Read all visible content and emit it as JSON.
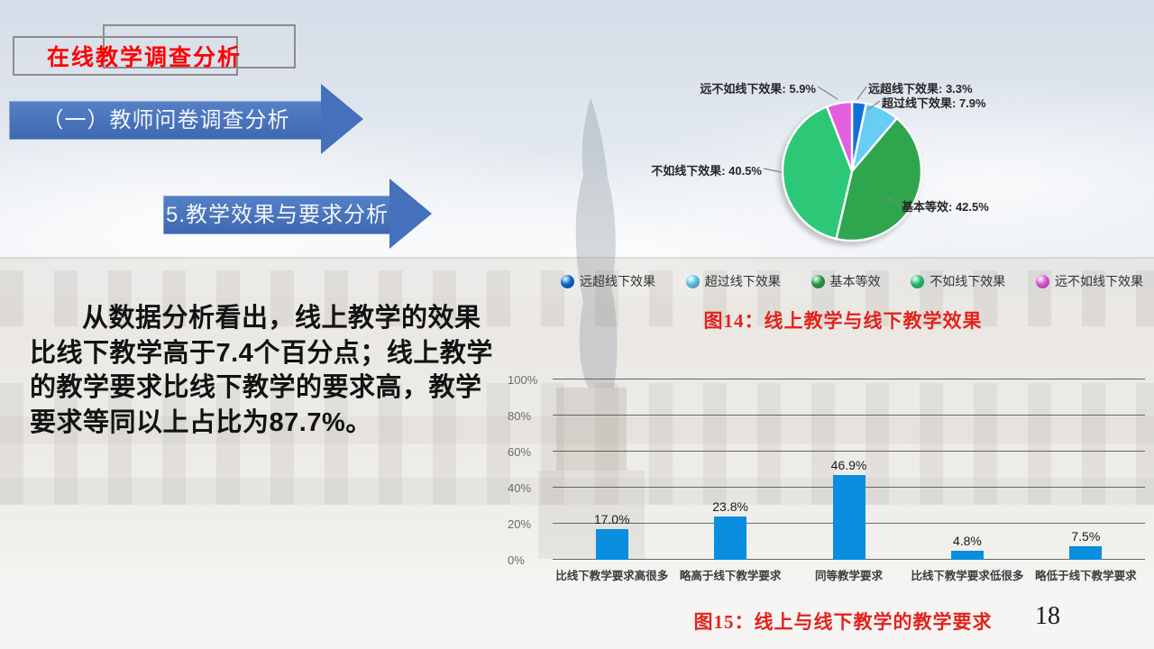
{
  "slide": {
    "title": "在线教学调查分析",
    "banner1": "（一）教师问卷调查分析",
    "banner2": "5.教学效果与要求分析",
    "body_text": "从数据分析看出，线上教学的效果比线下教学高于7.4个百分点；线上教学的教学要求比线下教学的要求高，教学要求等同以上占比为87.7%。",
    "caption_fig14": "图14：线上教学与线下教学效果",
    "caption_fig15": "图15：线上与线下教学的教学要求",
    "page_number": "18",
    "title_color": "#ff0000",
    "caption_color": "#e2231c",
    "banner_color": "#4470bc"
  },
  "chart_data": [
    {
      "type": "pie",
      "title": "线上教学与线下教学效果",
      "legend_position": "bottom",
      "slices": [
        {
          "label": "远超线下效果",
          "value": 3.3,
          "color": "#1170d8"
        },
        {
          "label": "超过线下效果",
          "value": 7.9,
          "color": "#67cdf4"
        },
        {
          "label": "基本等效",
          "value": 42.5,
          "color": "#2fa64e"
        },
        {
          "label": "不如线下效果",
          "value": 40.5,
          "color": "#2cc878"
        },
        {
          "label": "远不如线下效果",
          "value": 5.9,
          "color": "#e45fe0"
        }
      ],
      "callouts": [
        "远超线下效果: 3.3%",
        "超过线下效果: 7.9%",
        "基本等效: 42.5%",
        "不如线下效果: 40.5%",
        "远不如线下效果: 5.9%"
      ]
    },
    {
      "type": "bar",
      "title": "线上与线下教学的教学要求",
      "categories": [
        "比线下教学要求高很多",
        "略高于线下教学要求",
        "同等教学要求",
        "比线下教学要求低很多",
        "略低于线下教学要求"
      ],
      "values": [
        17.0,
        23.8,
        46.9,
        4.8,
        7.5
      ],
      "value_labels": [
        "17.0%",
        "23.8%",
        "46.9%",
        "4.8%",
        "7.5%"
      ],
      "bar_color": "#0a8ee0",
      "ylim": [
        0,
        100
      ],
      "yticks": [
        0,
        20,
        40,
        60,
        80,
        100
      ],
      "ytick_labels": [
        "0%",
        "20%",
        "40%",
        "60%",
        "80%",
        "100%"
      ],
      "grid": true
    }
  ]
}
